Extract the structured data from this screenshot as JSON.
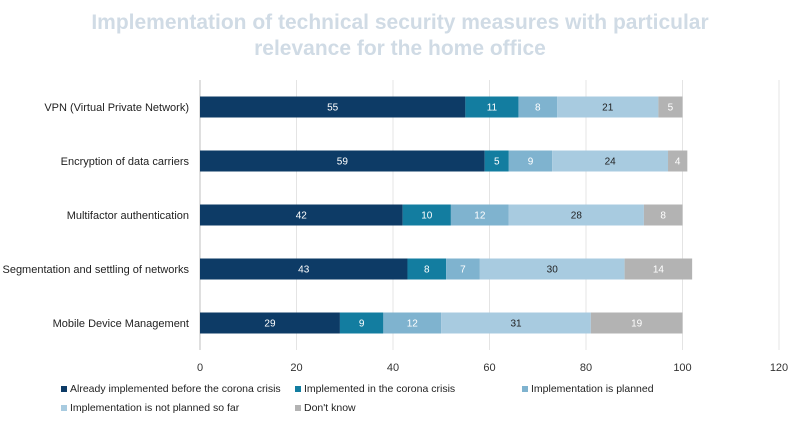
{
  "chart_data": {
    "type": "bar",
    "orientation": "horizontal",
    "stacked": true,
    "title": [
      "Implementation of technical security measures with particular",
      "relevance for the home office"
    ],
    "categories": [
      "VPN (Virtual Private Network)",
      "Encryption of data carriers",
      "Multifactor authentication",
      "Segmentation and settling of networks",
      "Mobile Device Management"
    ],
    "series": [
      {
        "name": "Already implemented before the corona crisis",
        "color": "#0d3b66",
        "label_color": "#ffffff",
        "values": [
          55,
          59,
          42,
          43,
          29
        ]
      },
      {
        "name": "Implemented in the corona crisis",
        "color": "#137da0",
        "label_color": "#ffffff",
        "values": [
          11,
          5,
          10,
          8,
          9
        ]
      },
      {
        "name": "Implementation is planned",
        "color": "#7fb3cf",
        "label_color": "#ffffff",
        "values": [
          8,
          9,
          12,
          7,
          12
        ]
      },
      {
        "name": "Implementation is not planned so far",
        "color": "#a8cbe0",
        "label_color": "#1f1f1f",
        "values": [
          21,
          24,
          28,
          30,
          31
        ]
      },
      {
        "name": "Don't know",
        "color": "#b3b3b3",
        "label_color": "#ffffff",
        "values": [
          5,
          4,
          8,
          14,
          19
        ]
      }
    ],
    "xlim": [
      0,
      120
    ],
    "xticks": [
      0,
      20,
      40,
      60,
      80,
      100,
      120
    ],
    "grid": true,
    "legend_position": "bottom"
  }
}
